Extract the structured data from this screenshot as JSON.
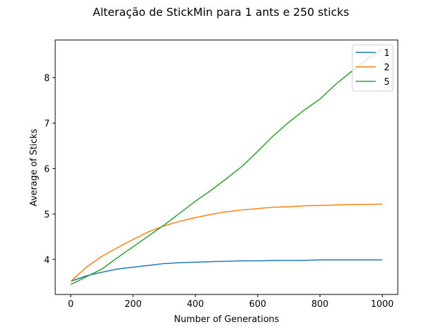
{
  "chart_data": {
    "type": "line",
    "title": "Alteração de StickMin para 1 ants e 250 sticks",
    "xlabel": "Number of Generations",
    "ylabel": "Average of Sticks",
    "xlim": [
      -50,
      1050
    ],
    "ylim": [
      3.23,
      8.83
    ],
    "xticks": [
      0,
      200,
      400,
      600,
      800,
      1000
    ],
    "yticks": [
      4,
      5,
      6,
      7,
      8
    ],
    "grid": false,
    "legend_position": "top-right",
    "x": [
      0,
      50,
      100,
      150,
      200,
      250,
      300,
      350,
      400,
      450,
      500,
      550,
      600,
      650,
      700,
      750,
      800,
      850,
      900,
      950,
      1000
    ],
    "series": [
      {
        "name": "1",
        "color": "#1f77b4",
        "values": [
          3.52,
          3.64,
          3.72,
          3.79,
          3.83,
          3.87,
          3.91,
          3.93,
          3.94,
          3.95,
          3.96,
          3.97,
          3.97,
          3.98,
          3.98,
          3.98,
          3.99,
          3.99,
          3.99,
          3.99,
          3.99
        ]
      },
      {
        "name": "2",
        "color": "#ff7f0e",
        "values": [
          3.52,
          3.83,
          4.07,
          4.26,
          4.44,
          4.61,
          4.74,
          4.84,
          4.92,
          4.99,
          5.05,
          5.09,
          5.12,
          5.15,
          5.16,
          5.18,
          5.19,
          5.2,
          5.21,
          5.21,
          5.22
        ]
      },
      {
        "name": "5",
        "color": "#2ca02c",
        "values": [
          3.45,
          3.62,
          3.79,
          4.04,
          4.28,
          4.52,
          4.76,
          5.02,
          5.28,
          5.52,
          5.78,
          6.05,
          6.38,
          6.72,
          7.02,
          7.29,
          7.53,
          7.85,
          8.13,
          8.4,
          8.63
        ]
      }
    ]
  }
}
